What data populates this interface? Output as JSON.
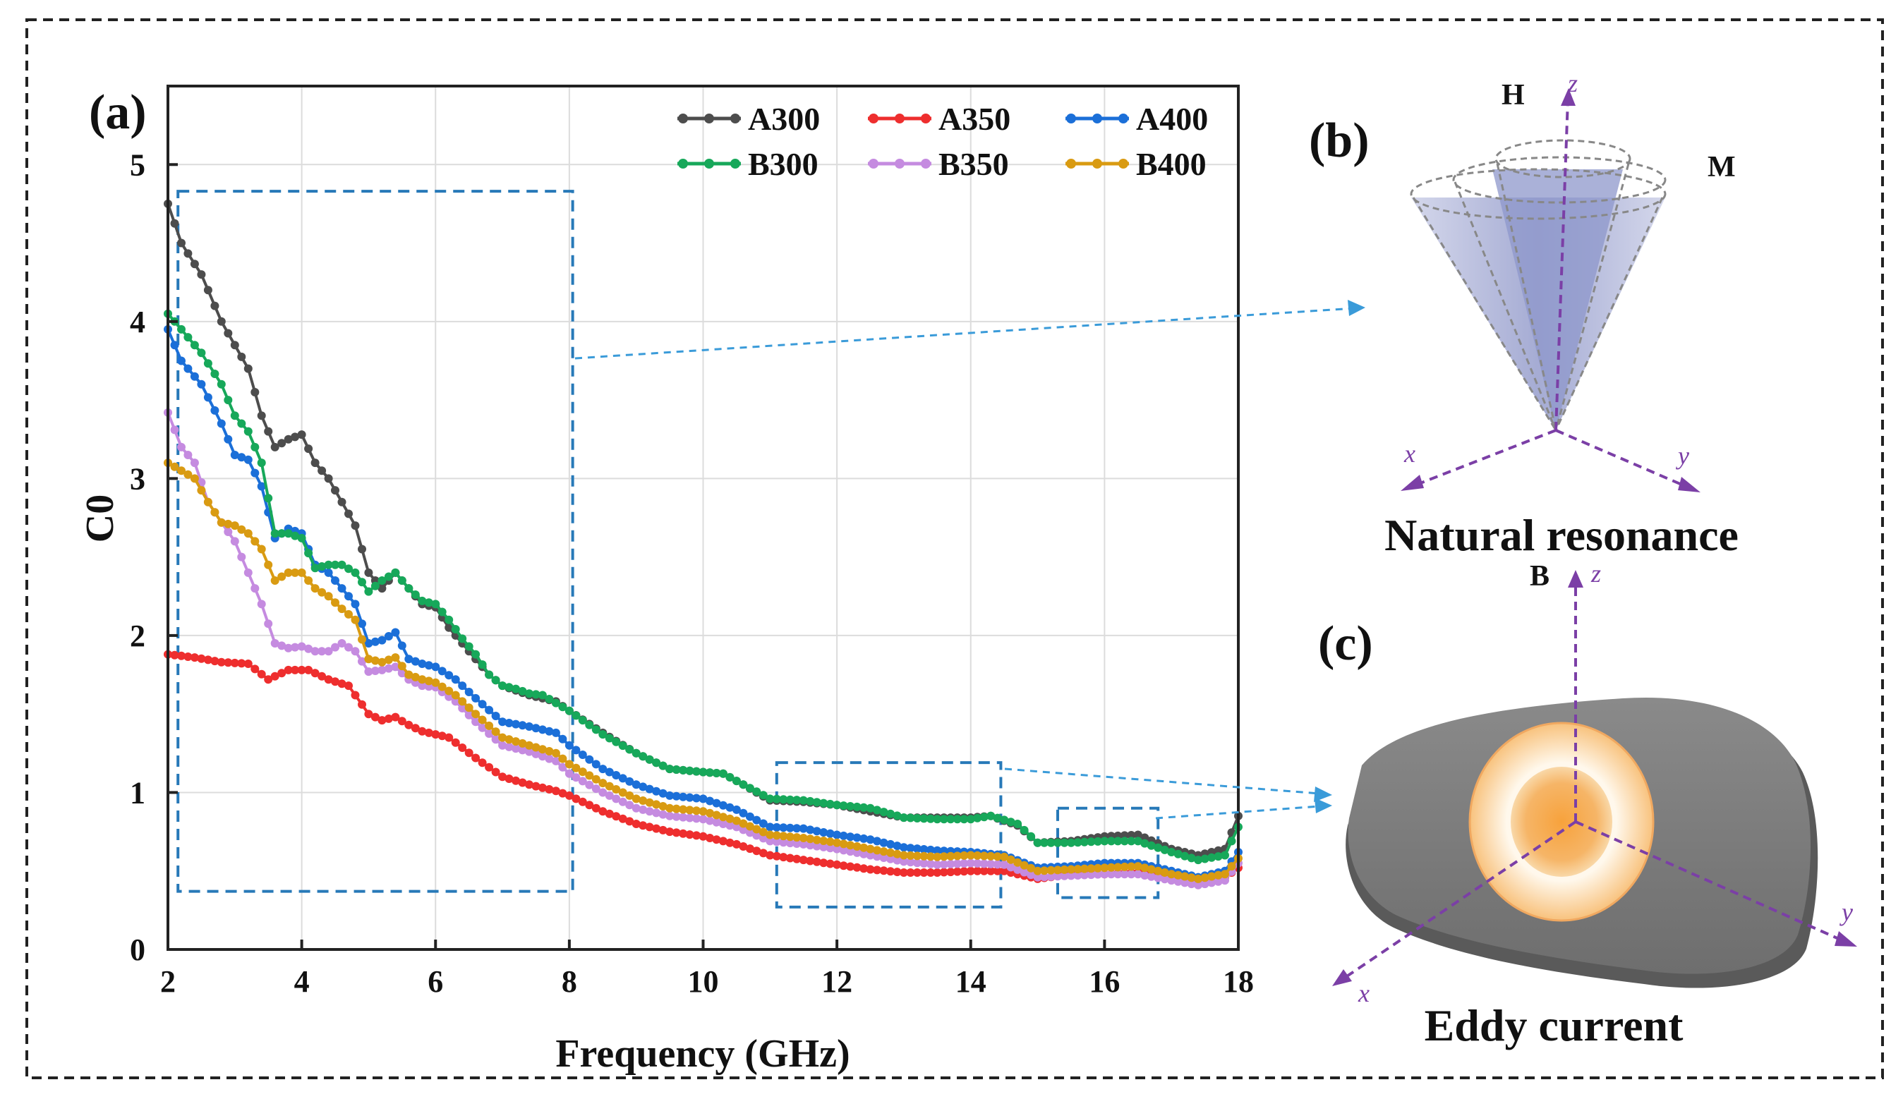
{
  "colors": {
    "A300": "#4d4d4d",
    "A350": "#ee2e2e",
    "A400": "#1b6fd8",
    "B300": "#17a85a",
    "B350": "#c58be0",
    "B400": "#d99b12",
    "zoom_box": "#2779b8",
    "arrow": "#3a9bd9",
    "axis_purple": "#7b3fa6",
    "cone": "#9aa3cf",
    "disk": "#7d7d7d",
    "core": "#f39a35"
  },
  "panels": {
    "a": "(a)",
    "b": "(b)",
    "c": "(c)"
  },
  "natural_resonance": {
    "caption": "Natural resonance",
    "H": "H",
    "M": "M",
    "z": "z",
    "x": "x",
    "y": "y"
  },
  "eddy_current": {
    "caption": "Eddy current",
    "B": "B",
    "z": "z",
    "x": "x",
    "y": "y"
  },
  "chart_data": {
    "type": "line",
    "xlabel": "Frequency (GHz)",
    "ylabel": "C0",
    "xlim": [
      2,
      18
    ],
    "ylim": [
      0,
      5.5
    ],
    "xticks": [
      2,
      4,
      6,
      8,
      10,
      12,
      14,
      16,
      18
    ],
    "yticks": [
      0,
      1,
      2,
      3,
      4,
      5
    ],
    "grid": true,
    "legend_position": "top-right",
    "series": [
      {
        "name": "A300",
        "points": [
          [
            2,
            4.75
          ],
          [
            2.2,
            4.5
          ],
          [
            2.5,
            4.3
          ],
          [
            2.8,
            4.0
          ],
          [
            3.0,
            3.85
          ],
          [
            3.2,
            3.7
          ],
          [
            3.4,
            3.4
          ],
          [
            3.6,
            3.2
          ],
          [
            3.8,
            3.25
          ],
          [
            4.0,
            3.28
          ],
          [
            4.2,
            3.1
          ],
          [
            4.4,
            3.0
          ],
          [
            4.6,
            2.85
          ],
          [
            4.8,
            2.7
          ],
          [
            5.0,
            2.4
          ],
          [
            5.2,
            2.3
          ],
          [
            5.4,
            2.4
          ],
          [
            5.6,
            2.3
          ],
          [
            5.8,
            2.2
          ],
          [
            6.0,
            2.18
          ],
          [
            6.2,
            2.05
          ],
          [
            6.4,
            1.95
          ],
          [
            6.6,
            1.85
          ],
          [
            6.8,
            1.75
          ],
          [
            7.0,
            1.68
          ],
          [
            7.2,
            1.65
          ],
          [
            7.4,
            1.62
          ],
          [
            7.6,
            1.6
          ],
          [
            7.8,
            1.58
          ],
          [
            8.0,
            1.52
          ],
          [
            8.5,
            1.38
          ],
          [
            9.0,
            1.25
          ],
          [
            9.5,
            1.15
          ],
          [
            10.0,
            1.13
          ],
          [
            10.3,
            1.12
          ],
          [
            10.6,
            1.05
          ],
          [
            11.0,
            0.95
          ],
          [
            11.5,
            0.94
          ],
          [
            12.0,
            0.92
          ],
          [
            12.5,
            0.88
          ],
          [
            13.0,
            0.84
          ],
          [
            13.5,
            0.84
          ],
          [
            14.0,
            0.84
          ],
          [
            14.3,
            0.85
          ],
          [
            14.7,
            0.79
          ],
          [
            15.0,
            0.68
          ],
          [
            15.5,
            0.69
          ],
          [
            16.0,
            0.72
          ],
          [
            16.5,
            0.73
          ],
          [
            17.0,
            0.64
          ],
          [
            17.4,
            0.6
          ],
          [
            17.8,
            0.64
          ],
          [
            18.0,
            0.85
          ]
        ]
      },
      {
        "name": "A350",
        "points": [
          [
            2,
            1.88
          ],
          [
            2.4,
            1.86
          ],
          [
            2.8,
            1.83
          ],
          [
            3.2,
            1.82
          ],
          [
            3.5,
            1.72
          ],
          [
            3.8,
            1.78
          ],
          [
            4.1,
            1.78
          ],
          [
            4.4,
            1.72
          ],
          [
            4.7,
            1.68
          ],
          [
            5.0,
            1.5
          ],
          [
            5.2,
            1.46
          ],
          [
            5.4,
            1.48
          ],
          [
            5.6,
            1.43
          ],
          [
            5.8,
            1.39
          ],
          [
            6.2,
            1.35
          ],
          [
            6.6,
            1.22
          ],
          [
            7.0,
            1.1
          ],
          [
            7.4,
            1.05
          ],
          [
            7.8,
            1.01
          ],
          [
            8.0,
            0.98
          ],
          [
            8.5,
            0.88
          ],
          [
            9.0,
            0.8
          ],
          [
            9.5,
            0.75
          ],
          [
            10.0,
            0.72
          ],
          [
            10.5,
            0.67
          ],
          [
            11.0,
            0.6
          ],
          [
            11.5,
            0.57
          ],
          [
            12.0,
            0.54
          ],
          [
            12.5,
            0.51
          ],
          [
            13.0,
            0.49
          ],
          [
            13.5,
            0.49
          ],
          [
            14.0,
            0.5
          ],
          [
            14.5,
            0.5
          ],
          [
            15.0,
            0.45
          ],
          [
            15.5,
            0.48
          ],
          [
            16.0,
            0.48
          ],
          [
            16.5,
            0.49
          ],
          [
            17.0,
            0.46
          ],
          [
            17.4,
            0.43
          ],
          [
            17.8,
            0.46
          ],
          [
            18.0,
            0.52
          ]
        ]
      },
      {
        "name": "A400",
        "points": [
          [
            2,
            3.95
          ],
          [
            2.2,
            3.75
          ],
          [
            2.5,
            3.6
          ],
          [
            2.8,
            3.35
          ],
          [
            3.0,
            3.15
          ],
          [
            3.2,
            3.12
          ],
          [
            3.4,
            2.95
          ],
          [
            3.6,
            2.62
          ],
          [
            3.8,
            2.68
          ],
          [
            4.0,
            2.65
          ],
          [
            4.2,
            2.45
          ],
          [
            4.4,
            2.4
          ],
          [
            4.6,
            2.3
          ],
          [
            4.8,
            2.2
          ],
          [
            5.0,
            1.95
          ],
          [
            5.2,
            1.97
          ],
          [
            5.4,
            2.02
          ],
          [
            5.6,
            1.85
          ],
          [
            5.8,
            1.82
          ],
          [
            6.0,
            1.8
          ],
          [
            6.3,
            1.72
          ],
          [
            6.6,
            1.6
          ],
          [
            7.0,
            1.45
          ],
          [
            7.4,
            1.42
          ],
          [
            7.8,
            1.38
          ],
          [
            8.0,
            1.3
          ],
          [
            8.5,
            1.15
          ],
          [
            9.0,
            1.05
          ],
          [
            9.5,
            0.98
          ],
          [
            10.0,
            0.96
          ],
          [
            10.5,
            0.89
          ],
          [
            11.0,
            0.78
          ],
          [
            11.5,
            0.77
          ],
          [
            12.0,
            0.73
          ],
          [
            12.5,
            0.7
          ],
          [
            13.0,
            0.65
          ],
          [
            13.5,
            0.63
          ],
          [
            14.0,
            0.62
          ],
          [
            14.5,
            0.6
          ],
          [
            15.0,
            0.52
          ],
          [
            15.5,
            0.53
          ],
          [
            16.0,
            0.55
          ],
          [
            16.5,
            0.55
          ],
          [
            17.0,
            0.5
          ],
          [
            17.4,
            0.46
          ],
          [
            17.8,
            0.5
          ],
          [
            18.0,
            0.62
          ]
        ]
      },
      {
        "name": "B300",
        "points": [
          [
            2,
            4.05
          ],
          [
            2.2,
            3.95
          ],
          [
            2.5,
            3.8
          ],
          [
            2.8,
            3.6
          ],
          [
            3.0,
            3.4
          ],
          [
            3.2,
            3.3
          ],
          [
            3.4,
            3.1
          ],
          [
            3.6,
            2.65
          ],
          [
            3.8,
            2.65
          ],
          [
            4.0,
            2.62
          ],
          [
            4.2,
            2.43
          ],
          [
            4.4,
            2.45
          ],
          [
            4.6,
            2.45
          ],
          [
            4.8,
            2.4
          ],
          [
            5.0,
            2.28
          ],
          [
            5.2,
            2.35
          ],
          [
            5.4,
            2.4
          ],
          [
            5.6,
            2.3
          ],
          [
            5.8,
            2.22
          ],
          [
            6.0,
            2.2
          ],
          [
            6.2,
            2.1
          ],
          [
            6.4,
            1.98
          ],
          [
            6.6,
            1.88
          ],
          [
            6.8,
            1.75
          ],
          [
            7.0,
            1.68
          ],
          [
            7.2,
            1.66
          ],
          [
            7.4,
            1.63
          ],
          [
            7.6,
            1.62
          ],
          [
            7.8,
            1.57
          ],
          [
            8.0,
            1.52
          ],
          [
            8.5,
            1.37
          ],
          [
            9.0,
            1.25
          ],
          [
            9.5,
            1.15
          ],
          [
            10.0,
            1.13
          ],
          [
            10.3,
            1.12
          ],
          [
            10.6,
            1.05
          ],
          [
            11.0,
            0.96
          ],
          [
            11.5,
            0.95
          ],
          [
            12.0,
            0.92
          ],
          [
            12.5,
            0.9
          ],
          [
            13.0,
            0.84
          ],
          [
            13.5,
            0.83
          ],
          [
            14.0,
            0.83
          ],
          [
            14.3,
            0.85
          ],
          [
            14.7,
            0.8
          ],
          [
            15.0,
            0.68
          ],
          [
            15.5,
            0.68
          ],
          [
            16.0,
            0.69
          ],
          [
            16.5,
            0.69
          ],
          [
            17.0,
            0.62
          ],
          [
            17.4,
            0.57
          ],
          [
            17.8,
            0.6
          ],
          [
            18.0,
            0.78
          ]
        ]
      },
      {
        "name": "B350",
        "points": [
          [
            2,
            3.42
          ],
          [
            2.2,
            3.2
          ],
          [
            2.4,
            3.1
          ],
          [
            2.6,
            2.85
          ],
          [
            2.8,
            2.72
          ],
          [
            3.0,
            2.6
          ],
          [
            3.2,
            2.4
          ],
          [
            3.4,
            2.2
          ],
          [
            3.6,
            1.95
          ],
          [
            3.8,
            1.92
          ],
          [
            4.0,
            1.93
          ],
          [
            4.2,
            1.9
          ],
          [
            4.4,
            1.9
          ],
          [
            4.6,
            1.95
          ],
          [
            4.8,
            1.9
          ],
          [
            5.0,
            1.77
          ],
          [
            5.2,
            1.78
          ],
          [
            5.4,
            1.8
          ],
          [
            5.6,
            1.72
          ],
          [
            5.8,
            1.68
          ],
          [
            6.0,
            1.67
          ],
          [
            6.3,
            1.58
          ],
          [
            6.6,
            1.45
          ],
          [
            7.0,
            1.3
          ],
          [
            7.4,
            1.26
          ],
          [
            7.8,
            1.2
          ],
          [
            8.0,
            1.12
          ],
          [
            8.5,
            1.0
          ],
          [
            9.0,
            0.9
          ],
          [
            9.5,
            0.85
          ],
          [
            10.0,
            0.83
          ],
          [
            10.5,
            0.78
          ],
          [
            11.0,
            0.69
          ],
          [
            11.5,
            0.67
          ],
          [
            12.0,
            0.64
          ],
          [
            12.5,
            0.6
          ],
          [
            13.0,
            0.56
          ],
          [
            13.5,
            0.54
          ],
          [
            14.0,
            0.55
          ],
          [
            14.5,
            0.54
          ],
          [
            15.0,
            0.46
          ],
          [
            15.5,
            0.47
          ],
          [
            16.0,
            0.48
          ],
          [
            16.5,
            0.48
          ],
          [
            17.0,
            0.44
          ],
          [
            17.4,
            0.41
          ],
          [
            17.8,
            0.44
          ],
          [
            18.0,
            0.55
          ]
        ]
      },
      {
        "name": "B400",
        "points": [
          [
            2,
            3.1
          ],
          [
            2.2,
            3.05
          ],
          [
            2.4,
            3.0
          ],
          [
            2.6,
            2.85
          ],
          [
            2.8,
            2.72
          ],
          [
            3.0,
            2.7
          ],
          [
            3.2,
            2.65
          ],
          [
            3.4,
            2.55
          ],
          [
            3.6,
            2.35
          ],
          [
            3.8,
            2.4
          ],
          [
            4.0,
            2.4
          ],
          [
            4.2,
            2.3
          ],
          [
            4.4,
            2.25
          ],
          [
            4.6,
            2.17
          ],
          [
            4.8,
            2.1
          ],
          [
            5.0,
            1.85
          ],
          [
            5.2,
            1.83
          ],
          [
            5.4,
            1.86
          ],
          [
            5.6,
            1.75
          ],
          [
            5.8,
            1.72
          ],
          [
            6.0,
            1.7
          ],
          [
            6.3,
            1.62
          ],
          [
            6.6,
            1.5
          ],
          [
            7.0,
            1.35
          ],
          [
            7.4,
            1.3
          ],
          [
            7.8,
            1.25
          ],
          [
            8.0,
            1.18
          ],
          [
            8.5,
            1.06
          ],
          [
            9.0,
            0.96
          ],
          [
            9.5,
            0.9
          ],
          [
            10.0,
            0.88
          ],
          [
            10.5,
            0.82
          ],
          [
            11.0,
            0.73
          ],
          [
            11.5,
            0.71
          ],
          [
            12.0,
            0.68
          ],
          [
            12.5,
            0.64
          ],
          [
            13.0,
            0.6
          ],
          [
            13.5,
            0.59
          ],
          [
            14.0,
            0.6
          ],
          [
            14.5,
            0.59
          ],
          [
            15.0,
            0.5
          ],
          [
            15.5,
            0.51
          ],
          [
            16.0,
            0.52
          ],
          [
            16.5,
            0.53
          ],
          [
            17.0,
            0.48
          ],
          [
            17.4,
            0.45
          ],
          [
            17.8,
            0.48
          ],
          [
            18.0,
            0.58
          ]
        ]
      }
    ],
    "zoom_boxes": [
      {
        "x": [
          2.15,
          8.05
        ],
        "y": [
          0.37,
          4.83
        ]
      },
      {
        "x": [
          11.1,
          14.45
        ],
        "y": [
          0.27,
          1.19
        ]
      },
      {
        "x": [
          15.3,
          16.8
        ],
        "y": [
          0.33,
          0.9
        ]
      }
    ]
  }
}
